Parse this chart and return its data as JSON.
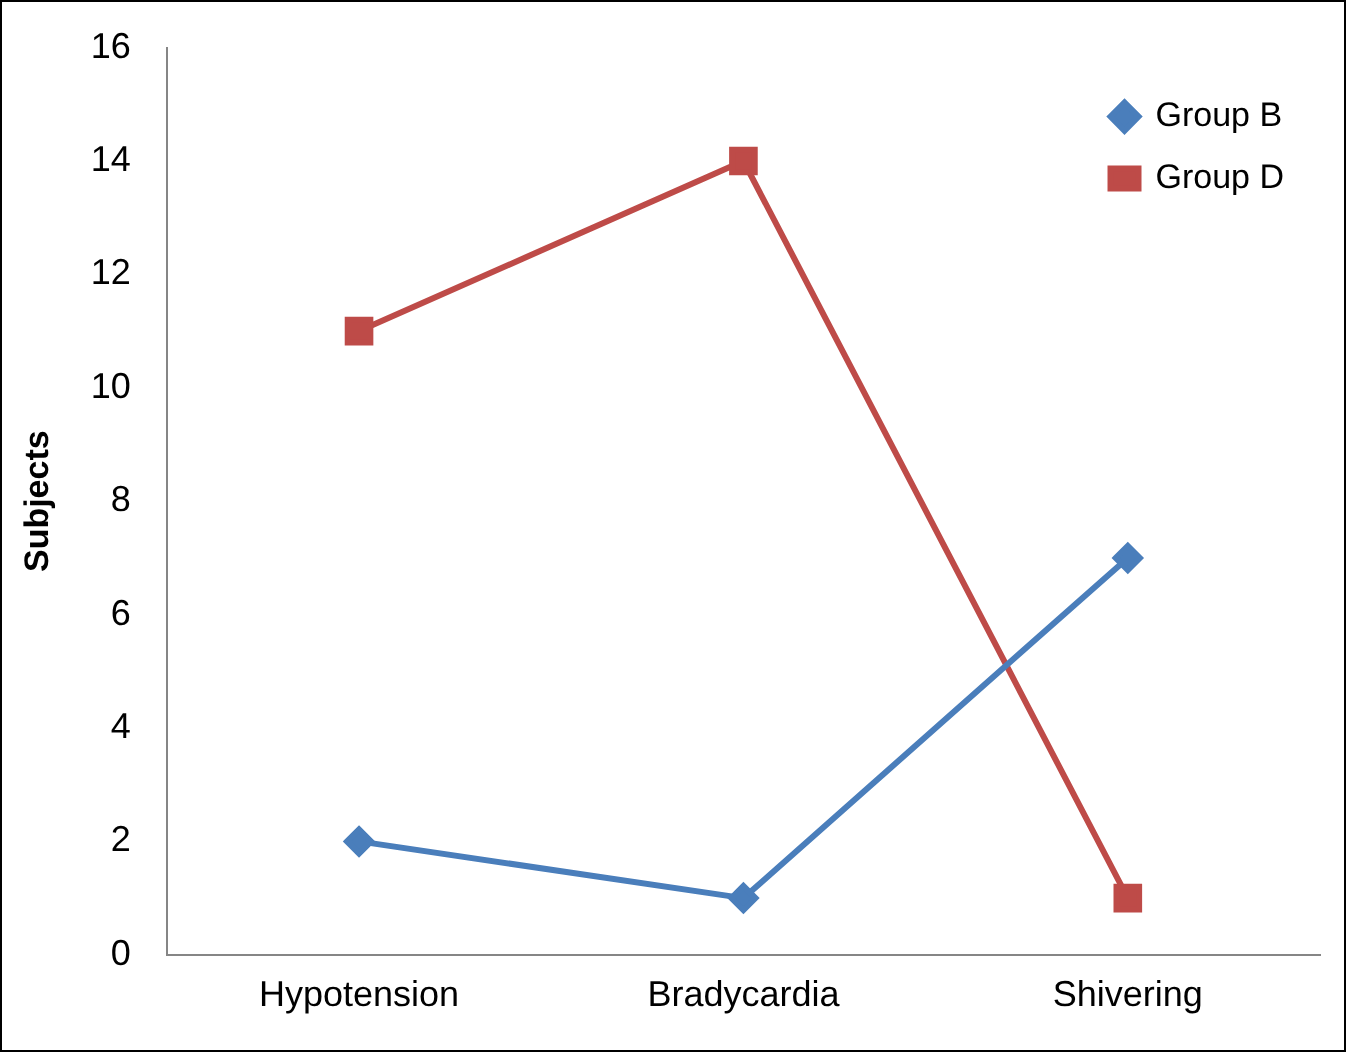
{
  "chart_data": {
    "type": "line",
    "ylabel": "Subjects",
    "categories": [
      "Hypotension",
      "Bradycardia",
      "Shivering"
    ],
    "series": [
      {
        "name": "Group B",
        "color": "#4a7ebb",
        "marker": "diamond",
        "values": [
          2,
          1,
          7
        ]
      },
      {
        "name": "Group D",
        "color": "#be4b48",
        "marker": "square",
        "values": [
          11,
          14,
          1
        ]
      }
    ],
    "ylim": [
      0,
      16
    ],
    "yticks": [
      0,
      2,
      4,
      6,
      8,
      10,
      12,
      14,
      16
    ],
    "grid": false,
    "legend": "top right"
  }
}
